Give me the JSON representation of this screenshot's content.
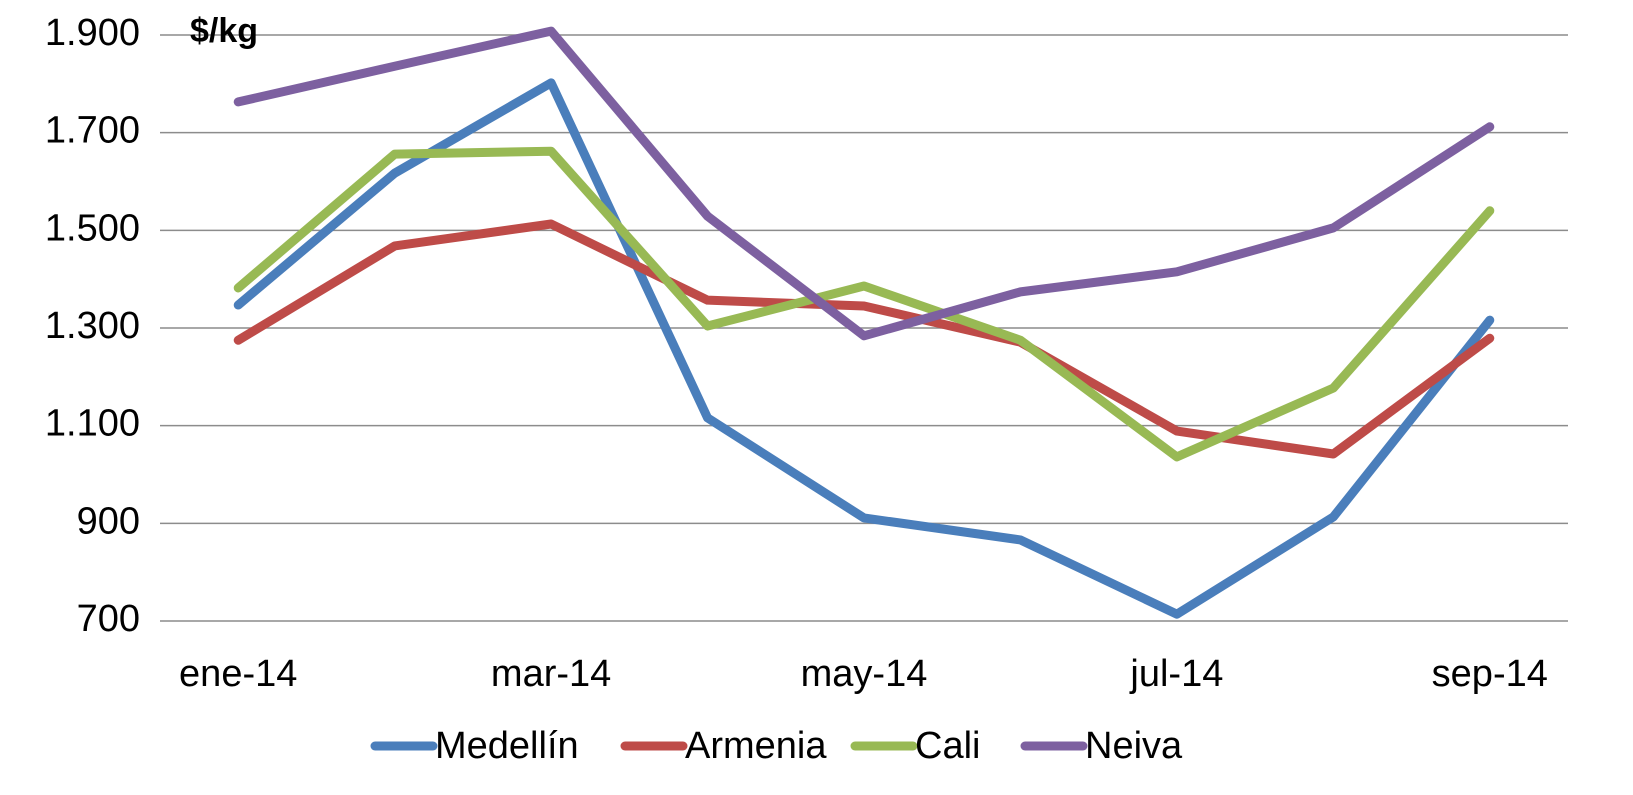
{
  "chart_data": {
    "type": "line",
    "y_label": "$/kg",
    "categories": [
      "ene-14",
      null,
      "mar-14",
      null,
      "may-14",
      null,
      "jul-14",
      null,
      "sep-14"
    ],
    "series": [
      {
        "name": "Medellín",
        "color": "#4a7ebb",
        "values": [
          1347,
          1617,
          1802,
          1116,
          911,
          866,
          714,
          913,
          1316
        ]
      },
      {
        "name": "Armenia",
        "color": "#be4b48",
        "values": [
          1275,
          1468,
          1513,
          1357,
          1345,
          1271,
          1089,
          1042,
          1279
        ]
      },
      {
        "name": "Cali",
        "color": "#98b954",
        "values": [
          1382,
          1656,
          1662,
          1304,
          1386,
          1275,
          1036,
          1177,
          1540
        ]
      },
      {
        "name": "Neiva",
        "color": "#7d60a0",
        "values": [
          1763,
          1836,
          1908,
          1529,
          1284,
          1374,
          1415,
          1505,
          1712
        ]
      }
    ],
    "ylim": [
      700,
      1900
    ],
    "yticks": [
      700,
      900,
      {
        "value": 1100,
        "label": "1.100"
      },
      {
        "value": 1300,
        "label": "1.300"
      },
      {
        "value": 1500,
        "label": "1.500"
      },
      {
        "value": 1700,
        "label": "1.700"
      },
      {
        "value": 1900,
        "label": "1.900"
      }
    ],
    "grid": true,
    "legend": "bottom"
  }
}
